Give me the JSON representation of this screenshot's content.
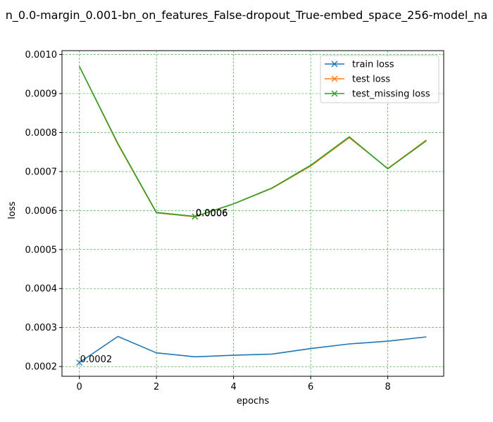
{
  "chart_data": {
    "type": "line",
    "title": "n_0.0-margin_0.001-bn_on_features_False-dropout_True-embed_space_256-model_na",
    "xlabel": "epochs",
    "ylabel": "loss",
    "xlim": [
      -0.45,
      9.45
    ],
    "ylim": [
      0.000175,
      0.00101
    ],
    "xticks": [
      0,
      2,
      4,
      6,
      8
    ],
    "xtick_labels": [
      "0",
      "2",
      "4",
      "6",
      "8"
    ],
    "yticks": [
      0.0002,
      0.0003,
      0.0004,
      0.0005,
      0.0006,
      0.0007,
      0.0008,
      0.0009,
      0.001
    ],
    "ytick_labels": [
      "0.0002",
      "0.0003",
      "0.0004",
      "0.0005",
      "0.0006",
      "0.0007",
      "0.0008",
      "0.0009",
      "0.0010"
    ],
    "grid": true,
    "legend_position": "top-right",
    "x": [
      0,
      1,
      2,
      3,
      4,
      5,
      6,
      7,
      8,
      9
    ],
    "series": [
      {
        "name": "train loss",
        "color": "#1f77b4",
        "values": [
          0.00021,
          0.000277,
          0.000235,
          0.000225,
          0.000229,
          0.000232,
          0.000246,
          0.000258,
          0.000265,
          0.000276
        ],
        "marker_index": 0
      },
      {
        "name": "test loss",
        "color": "#ff7f0e",
        "values": [
          0.00097,
          0.00077,
          0.000594,
          0.000584,
          0.000617,
          0.000657,
          0.000714,
          0.000787,
          0.000708,
          0.000781
        ],
        "marker_index": 3
      },
      {
        "name": "test_missing loss",
        "color": "#2ca02c",
        "values": [
          0.00097,
          0.000772,
          0.000595,
          0.000585,
          0.000617,
          0.000658,
          0.000716,
          0.000789,
          0.000707,
          0.000779
        ],
        "marker_index": 3
      }
    ],
    "annotations": [
      {
        "text": "0.0002",
        "series": 0,
        "index": 0
      },
      {
        "text": "0.0006",
        "series": 1,
        "index": 3
      },
      {
        "text": "0.0006",
        "series": 2,
        "index": 3
      }
    ]
  }
}
